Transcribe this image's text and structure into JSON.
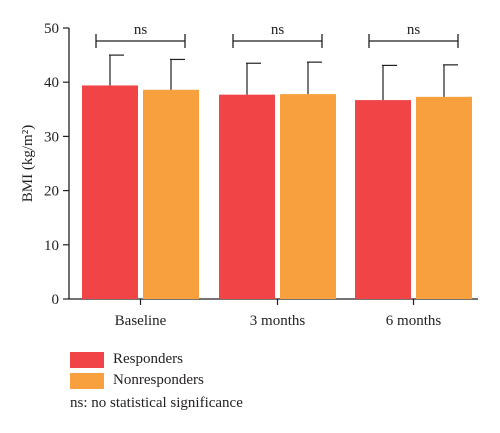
{
  "chart_data": {
    "type": "bar",
    "categories": [
      "Baseline",
      "3 months",
      "6 months"
    ],
    "series": [
      {
        "name": "Responders",
        "values": [
          39.4,
          37.7,
          36.7
        ],
        "errors": [
          5.6,
          5.8,
          6.4
        ],
        "color": "#f04447"
      },
      {
        "name": "Nonresponders",
        "values": [
          38.6,
          37.8,
          37.3
        ],
        "errors": [
          5.6,
          5.9,
          5.9
        ],
        "color": "#f8a03e"
      }
    ],
    "ylabel": "BMI (kg/m²)",
    "ylim": [
      0,
      50
    ],
    "yticks": [
      0,
      10,
      20,
      30,
      40,
      50
    ],
    "significance": [
      "ns",
      "ns",
      "ns"
    ],
    "grid": false
  },
  "footnote": "ns: no statistical significance"
}
